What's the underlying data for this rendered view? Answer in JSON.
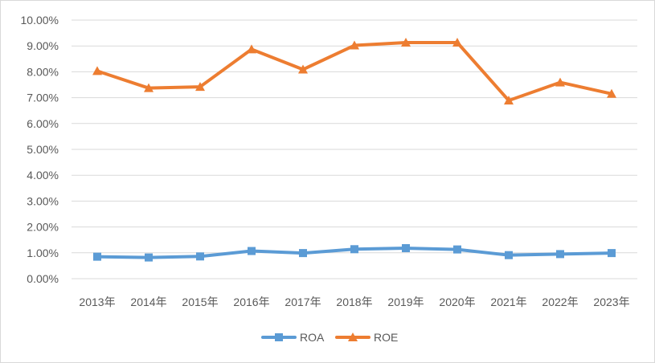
{
  "chart_data": {
    "type": "line",
    "title": "",
    "xlabel": "",
    "ylabel": "",
    "categories": [
      "2013年",
      "2014年",
      "2015年",
      "2016年",
      "2017年",
      "2018年",
      "2019年",
      "2020年",
      "2021年",
      "2022年",
      "2023年"
    ],
    "ylim": [
      0,
      10
    ],
    "yticks": [
      "0.00%",
      "1.00%",
      "2.00%",
      "3.00%",
      "4.00%",
      "5.00%",
      "6.00%",
      "7.00%",
      "8.00%",
      "9.00%",
      "10.00%"
    ],
    "grid": true,
    "legend": "bottom",
    "series": [
      {
        "name": "ROA",
        "color": "#5b9bd5",
        "marker": "square",
        "values": [
          0.85,
          0.82,
          0.86,
          1.07,
          0.99,
          1.14,
          1.18,
          1.13,
          0.91,
          0.95,
          0.99
        ]
      },
      {
        "name": "ROE",
        "color": "#ed7d31",
        "marker": "triangle",
        "values": [
          8.03,
          7.37,
          7.42,
          8.87,
          8.09,
          9.02,
          9.13,
          9.13,
          6.89,
          7.59,
          7.15
        ]
      }
    ]
  }
}
